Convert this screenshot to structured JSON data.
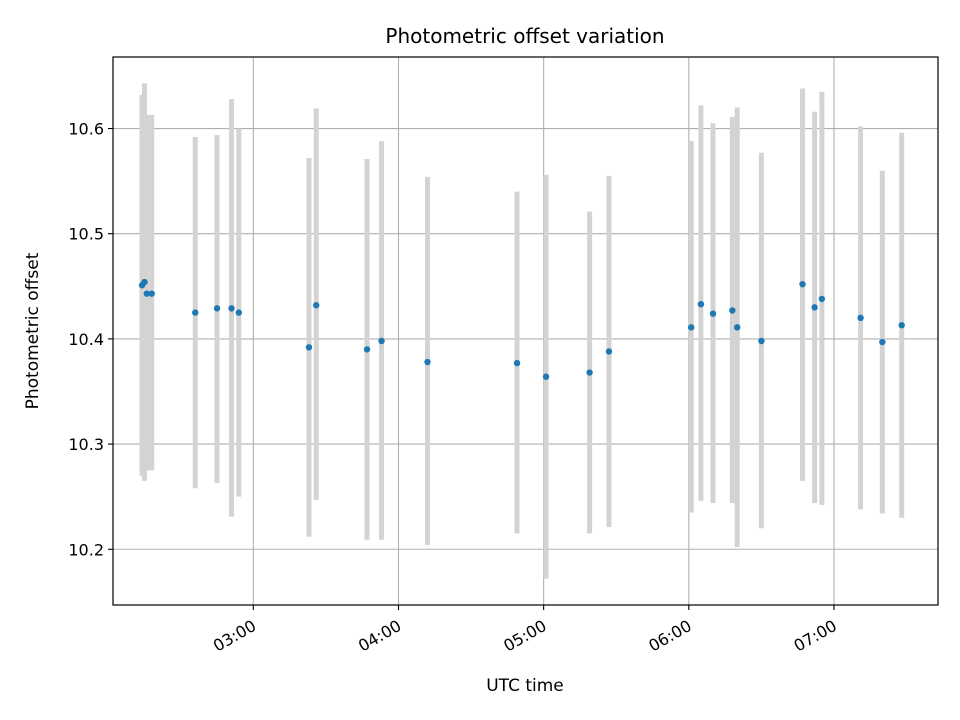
{
  "chart_data": {
    "type": "scatter",
    "title": "Photometric offset variation",
    "xlabel": "UTC time",
    "ylabel": "Photometric offset",
    "x_unit": "time",
    "xlim": [
      "02:02",
      "07:43"
    ],
    "ylim": [
      10.147,
      10.668
    ],
    "grid": true,
    "x_ticks": [
      "03:00",
      "04:00",
      "05:00",
      "06:00",
      "07:00"
    ],
    "y_ticks": [
      "10.2",
      "10.3",
      "10.4",
      "10.5",
      "10.6"
    ],
    "point_color": "#1f77b4",
    "errorbar_color": "#d3d3d3",
    "series": [
      {
        "x": [
          "02:14",
          "02:15",
          "02:16",
          "02:18",
          "02:36",
          "02:45",
          "02:51",
          "02:54",
          "03:23",
          "03:26",
          "03:47",
          "03:53",
          "04:12",
          "04:49",
          "05:01",
          "05:19",
          "05:27",
          "06:01",
          "06:05",
          "06:10",
          "06:18",
          "06:20",
          "06:30",
          "06:47",
          "06:52",
          "06:55",
          "07:11",
          "07:20",
          "07:28"
        ],
        "y": [
          10.451,
          10.454,
          10.443,
          10.443,
          10.425,
          10.429,
          10.429,
          10.425,
          10.392,
          10.432,
          10.39,
          10.398,
          10.378,
          10.377,
          10.364,
          10.368,
          10.388,
          10.411,
          10.433,
          10.424,
          10.427,
          10.411,
          10.398,
          10.452,
          10.43,
          10.438,
          10.42,
          10.397,
          10.413
        ],
        "yerr_low": [
          10.27,
          10.265,
          10.275,
          10.275,
          10.258,
          10.263,
          10.231,
          10.25,
          10.212,
          10.247,
          10.209,
          10.209,
          10.204,
          10.215,
          10.172,
          10.215,
          10.221,
          10.235,
          10.246,
          10.244,
          10.244,
          10.202,
          10.22,
          10.265,
          10.244,
          10.242,
          10.238,
          10.234,
          10.23
        ],
        "yerr_high": [
          10.632,
          10.643,
          10.613,
          10.613,
          10.592,
          10.594,
          10.628,
          10.6,
          10.572,
          10.619,
          10.571,
          10.588,
          10.554,
          10.54,
          10.556,
          10.521,
          10.555,
          10.588,
          10.622,
          10.605,
          10.611,
          10.62,
          10.577,
          10.638,
          10.616,
          10.635,
          10.602,
          10.56,
          10.596
        ]
      }
    ]
  }
}
